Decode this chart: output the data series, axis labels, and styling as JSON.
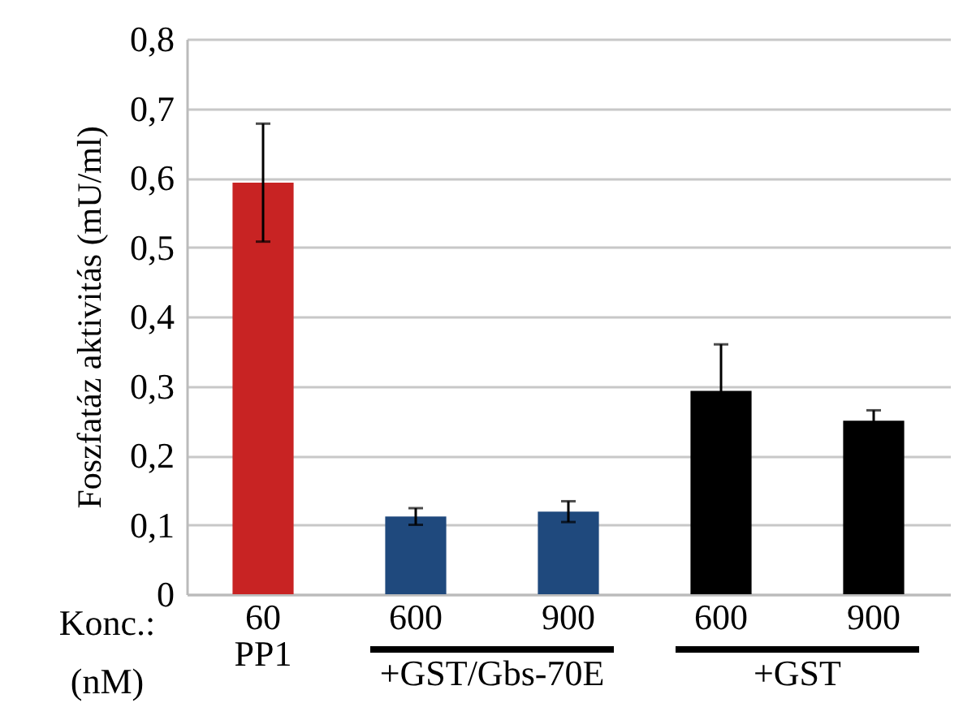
{
  "chart_data": {
    "type": "bar",
    "ylabel": "Foszfatáz aktivitás (mU/ml)",
    "xlabel": "Konc.: (nM)",
    "categories": [
      "60",
      "600",
      "900",
      "600",
      "900"
    ],
    "values": [
      0.593,
      0.112,
      0.119,
      0.293,
      0.25
    ],
    "colors": [
      "#c82323",
      "#1f497d",
      "#1f497d",
      "#000000",
      "#000000"
    ],
    "errors": [
      0.085,
      0.012,
      0.015,
      0.067,
      0.015
    ],
    "ylim": [
      0,
      0.8
    ],
    "yticks": [
      0,
      {
        "value": 0.1,
        "label": "0,1"
      },
      {
        "value": 0.2,
        "label": "0,2"
      },
      {
        "value": 0.3,
        "label": "0,3"
      },
      {
        "value": 0.4,
        "label": "0,4"
      },
      {
        "value": 0.5,
        "label": "0,5"
      },
      {
        "value": 0.6,
        "label": "0,6"
      },
      {
        "value": 0.7,
        "label": "0,7"
      },
      {
        "value": 0.8,
        "label": "0,8"
      }
    ],
    "grid": "y",
    "annotations": [
      "PP1",
      "+GST/Gbs-70E",
      "+GST"
    ]
  }
}
